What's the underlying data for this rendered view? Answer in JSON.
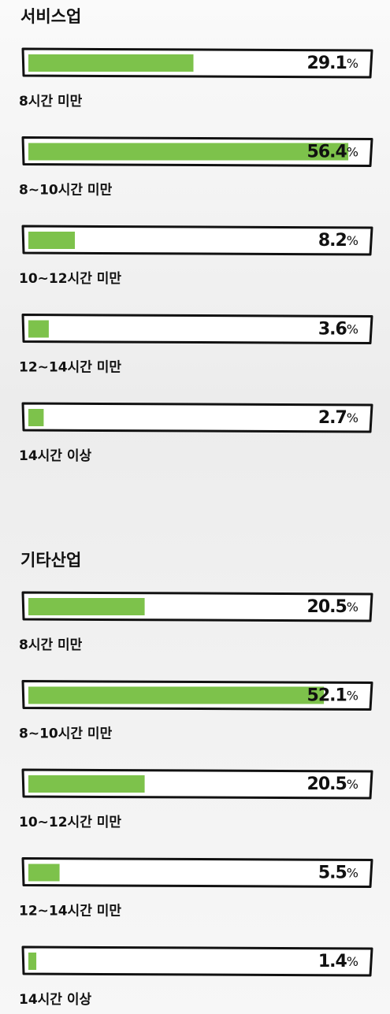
{
  "chart_data": [
    {
      "type": "hbar",
      "title": "서비스업",
      "categories": [
        "8시간 미만",
        "8~10시간 미만",
        "10~12시간 미만",
        "12~14시간 미만",
        "14시간 이상"
      ],
      "values": [
        29.1,
        56.4,
        8.2,
        3.6,
        2.7
      ],
      "unit": "%",
      "color": "#7dc24b",
      "xlim": [
        0,
        60
      ]
    },
    {
      "type": "hbar",
      "title": "기타산업",
      "categories": [
        "8시간 미만",
        "8~10시간 미만",
        "10~12시간 미만",
        "12~14시간 미만",
        "14시간 이상"
      ],
      "values": [
        20.5,
        52.1,
        20.5,
        5.5,
        1.4
      ],
      "unit": "%",
      "color": "#7dc24b",
      "xlim": [
        0,
        60
      ]
    }
  ]
}
